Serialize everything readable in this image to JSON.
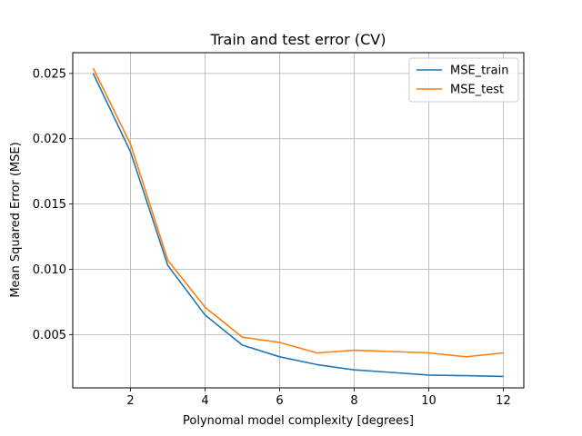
{
  "chart_data": {
    "type": "line",
    "title": "Train and test error (CV)",
    "xlabel": "Polynomal model complexity [degrees]",
    "ylabel": "Mean Squared Error (MSE)",
    "x": [
      1,
      2,
      3,
      4,
      5,
      6,
      7,
      8,
      9,
      10,
      11,
      12
    ],
    "xlim": [
      0.45,
      12.55
    ],
    "ylim": [
      0.00092,
      0.02659
    ],
    "xticks": [
      2,
      4,
      6,
      8,
      10,
      12
    ],
    "xtick_labels": [
      "2",
      "4",
      "6",
      "8",
      "10",
      "12"
    ],
    "yticks": [
      0.005,
      0.01,
      0.015,
      0.02,
      0.025
    ],
    "ytick_labels": [
      "0.005",
      "0.010",
      "0.015",
      "0.020",
      "0.025"
    ],
    "grid": true,
    "legend_position": "top-right",
    "series": [
      {
        "name": "MSE_train",
        "color": "#1f77b4",
        "values": [
          0.025,
          0.019,
          0.0103,
          0.0065,
          0.0042,
          0.0033,
          0.0027,
          0.0023,
          0.0021,
          0.0019,
          0.00185,
          0.0018
        ]
      },
      {
        "name": "MSE_test",
        "color": "#ff7f0e",
        "values": [
          0.0254,
          0.0196,
          0.0107,
          0.0071,
          0.0048,
          0.0044,
          0.0036,
          0.0038,
          0.0037,
          0.0036,
          0.0033,
          0.0036
        ]
      }
    ]
  }
}
